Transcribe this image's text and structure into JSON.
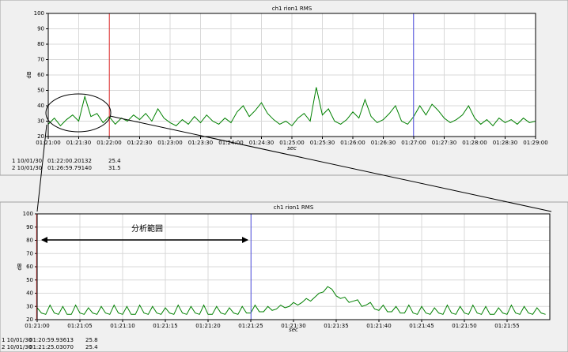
{
  "annotation": "分析範囲",
  "chart_data": [
    {
      "type": "line",
      "title": "ch1 rion1 RMS",
      "ylabel": "dB",
      "xlabel": "sec",
      "grid": true,
      "xlim": [
        4860,
        5340
      ],
      "ylim": [
        20,
        100
      ],
      "yticks": [
        20,
        30,
        40,
        50,
        60,
        70,
        80,
        90,
        100
      ],
      "xticks": [
        {
          "value": 4860,
          "label": "01:21:00"
        },
        {
          "value": 4890,
          "label": "01:21:30"
        },
        {
          "value": 4920,
          "label": "01:22:00"
        },
        {
          "value": 4950,
          "label": "01:22:30"
        },
        {
          "value": 4980,
          "label": "01:23:00"
        },
        {
          "value": 5010,
          "label": "01:23:30"
        },
        {
          "value": 5040,
          "label": "01:24:00"
        },
        {
          "value": 5070,
          "label": "01:24:30"
        },
        {
          "value": 5100,
          "label": "01:25:00"
        },
        {
          "value": 5130,
          "label": "01:25:30"
        },
        {
          "value": 5160,
          "label": "01:26:00"
        },
        {
          "value": 5190,
          "label": "01:26:30"
        },
        {
          "value": 5220,
          "label": "01:27:00"
        },
        {
          "value": 5250,
          "label": "01:27:30"
        },
        {
          "value": 5280,
          "label": "01:28:00"
        },
        {
          "value": 5310,
          "label": "01:28:30"
        },
        {
          "value": 5340,
          "label": "01:29:00"
        }
      ],
      "x": [
        4860,
        4866,
        4872,
        4878,
        4884,
        4890,
        4896,
        4902,
        4908,
        4914,
        4920,
        4926,
        4932,
        4938,
        4944,
        4950,
        4956,
        4962,
        4968,
        4974,
        4980,
        4986,
        4992,
        4998,
        5004,
        5010,
        5016,
        5022,
        5028,
        5034,
        5040,
        5046,
        5052,
        5058,
        5064,
        5070,
        5076,
        5082,
        5088,
        5094,
        5100,
        5106,
        5112,
        5118,
        5124,
        5130,
        5136,
        5142,
        5148,
        5154,
        5160,
        5166,
        5172,
        5178,
        5184,
        5190,
        5196,
        5202,
        5208,
        5214,
        5220,
        5226,
        5232,
        5238,
        5244,
        5250,
        5256,
        5262,
        5268,
        5274,
        5280,
        5286,
        5292,
        5298,
        5304,
        5310,
        5316,
        5322,
        5328,
        5334,
        5340
      ],
      "series": [
        {
          "color": "#008000",
          "values": [
            28,
            32,
            27,
            31,
            34,
            30,
            46,
            33,
            35,
            29,
            33,
            28,
            32,
            30,
            34,
            31,
            35,
            30,
            38,
            32,
            29,
            27,
            31,
            28,
            33,
            29,
            34,
            30,
            28,
            32,
            29,
            36,
            40,
            33,
            37,
            42,
            35,
            31,
            28,
            30,
            27,
            32,
            35,
            30,
            52,
            34,
            38,
            30,
            28,
            31,
            36,
            32,
            44,
            33,
            29,
            31,
            35,
            40,
            30,
            28,
            33,
            40,
            34,
            41,
            37,
            32,
            29,
            31,
            34,
            40,
            32,
            28,
            31,
            27,
            32,
            29,
            31,
            28,
            32,
            29,
            30
          ]
        }
      ],
      "cursors": [
        {
          "label": "1 10/01/30",
          "x": {
            "value": 4920.20132,
            "label": "01:22:00.20132"
          },
          "value": 25.4,
          "color": "#e03030"
        },
        {
          "label": "2 10/01/30",
          "x": {
            "value": 5219.7914,
            "label": "01:26:59.79140"
          },
          "value": 31.5,
          "color": "#5050e0"
        }
      ]
    },
    {
      "type": "line",
      "title": "ch1 rion1 RMS",
      "ylabel": "dB",
      "xlabel": "sec",
      "grid": true,
      "xlim": [
        4860,
        4920
      ],
      "ylim": [
        20,
        100
      ],
      "yticks": [
        20,
        30,
        40,
        50,
        60,
        70,
        80,
        90,
        100
      ],
      "xticks": [
        {
          "value": 4860,
          "label": "01:21:00"
        },
        {
          "value": 4865,
          "label": "01:21:05"
        },
        {
          "value": 4870,
          "label": "01:21:10"
        },
        {
          "value": 4875,
          "label": "01:21:15"
        },
        {
          "value": 4880,
          "label": "01:21:20"
        },
        {
          "value": 4885,
          "label": "01:21:25"
        },
        {
          "value": 4890,
          "label": "01:21:30"
        },
        {
          "value": 4895,
          "label": "01:21:35"
        },
        {
          "value": 4900,
          "label": "01:21:40"
        },
        {
          "value": 4905,
          "label": "01:21:45"
        },
        {
          "value": 4910,
          "label": "01:21:50"
        },
        {
          "value": 4915,
          "label": "01:21:55"
        }
      ],
      "x": [
        4860,
        4860.5,
        4861,
        4861.5,
        4862,
        4862.5,
        4863,
        4863.5,
        4864,
        4864.5,
        4865,
        4865.5,
        4866,
        4866.5,
        4867,
        4867.5,
        4868,
        4868.5,
        4869,
        4869.5,
        4870,
        4870.5,
        4871,
        4871.5,
        4872,
        4872.5,
        4873,
        4873.5,
        4874,
        4874.5,
        4875,
        4875.5,
        4876,
        4876.5,
        4877,
        4877.5,
        4878,
        4878.5,
        4879,
        4879.5,
        4880,
        4880.5,
        4881,
        4881.5,
        4882,
        4882.5,
        4883,
        4883.5,
        4884,
        4884.5,
        4885,
        4885.5,
        4886,
        4886.5,
        4887,
        4887.5,
        4888,
        4888.5,
        4889,
        4889.5,
        4890,
        4890.5,
        4891,
        4891.5,
        4892,
        4892.5,
        4893,
        4893.5,
        4894,
        4894.5,
        4895,
        4895.5,
        4896,
        4896.5,
        4897,
        4897.5,
        4898,
        4898.5,
        4899,
        4899.5,
        4900,
        4900.5,
        4901,
        4901.5,
        4902,
        4902.5,
        4903,
        4903.5,
        4904,
        4904.5,
        4905,
        4905.5,
        4906,
        4906.5,
        4907,
        4907.5,
        4908,
        4908.5,
        4909,
        4909.5,
        4910,
        4910.5,
        4911,
        4911.5,
        4912,
        4912.5,
        4913,
        4913.5,
        4914,
        4914.5,
        4915,
        4915.5,
        4916,
        4916.5,
        4917,
        4917.5,
        4918,
        4918.5,
        4919,
        4919.5
      ],
      "series": [
        {
          "color": "#008000",
          "values": [
            29,
            25,
            24,
            31,
            25,
            24,
            30,
            24,
            24,
            31,
            25,
            24,
            29,
            25,
            24,
            30,
            25,
            24,
            31,
            25,
            24,
            30,
            24,
            24,
            31,
            25,
            24,
            30,
            25,
            24,
            29,
            25,
            24,
            31,
            25,
            24,
            30,
            25,
            24,
            31,
            24,
            24,
            30,
            25,
            24,
            29,
            25,
            24,
            30,
            25,
            25,
            31,
            26,
            26,
            30,
            27,
            28,
            31,
            29,
            30,
            33,
            31,
            33,
            36,
            34,
            37,
            40,
            41,
            45,
            43,
            38,
            36,
            37,
            33,
            34,
            35,
            30,
            31,
            33,
            28,
            27,
            31,
            26,
            26,
            30,
            25,
            25,
            31,
            25,
            24,
            30,
            25,
            24,
            29,
            25,
            24,
            31,
            25,
            24,
            30,
            25,
            24,
            31,
            25,
            24,
            30,
            24,
            24,
            29,
            25,
            24,
            31,
            25,
            24,
            30,
            25,
            24,
            29,
            25,
            24
          ]
        }
      ],
      "cursors": [
        {
          "label": "1 10/01/30",
          "x": {
            "value": 4859.93613,
            "label": "01:20:59.93613"
          },
          "value": 25.8,
          "color": "#e03030"
        },
        {
          "label": "2 10/01/30",
          "x": {
            "value": 4885.0307,
            "label": "01:21:25.03070"
          },
          "value": 25.4,
          "color": "#5050e0"
        }
      ]
    }
  ]
}
